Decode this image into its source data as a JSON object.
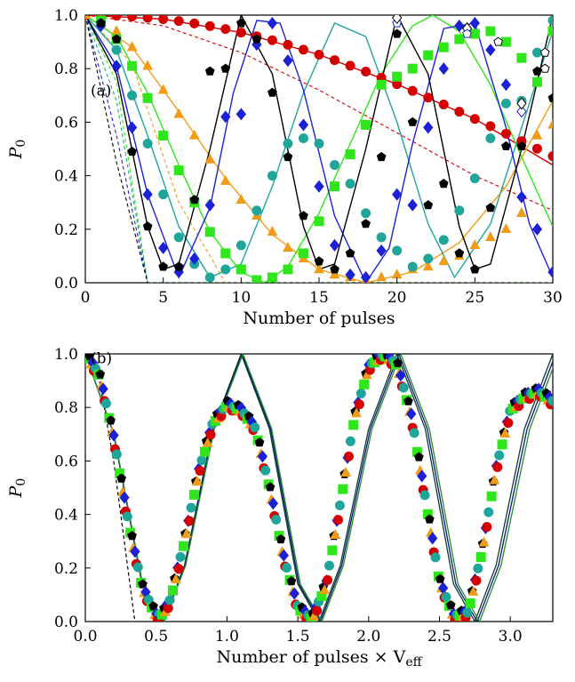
{
  "chart_data": [
    {
      "type": "scatter",
      "panel_label": "(a)",
      "xlabel": "Number of pulses",
      "ylabel": "P",
      "ylabel_sub": "0",
      "xlim": [
        0,
        30
      ],
      "ylim": [
        0,
        1
      ],
      "xticks": [
        0,
        5,
        10,
        15,
        20,
        25,
        30
      ],
      "yticks": [
        0.0,
        0.2,
        0.4,
        0.6,
        0.8,
        1.0
      ],
      "xtick_labels": [
        "0",
        "5",
        "10",
        "15",
        "20",
        "25",
        "30"
      ],
      "ytick_labels": [
        "0.0",
        "0.2",
        "0.4",
        "0.6",
        "0.8",
        "1.0"
      ],
      "grid": false,
      "series": [
        {
          "color": "#d40000",
          "marker": "circle",
          "filled": true,
          "x": [
            0,
            1,
            2,
            3,
            4,
            5,
            6,
            7,
            8,
            9,
            10,
            11,
            12,
            13,
            14,
            15,
            16,
            17,
            18,
            19,
            20,
            21,
            22,
            23,
            24,
            25,
            26,
            27,
            28,
            29,
            30
          ],
          "y": [
            1.0,
            1.0,
            0.998,
            0.995,
            0.99,
            0.985,
            0.978,
            0.969,
            0.959,
            0.948,
            0.935,
            0.921,
            0.906,
            0.889,
            0.871,
            0.852,
            0.832,
            0.811,
            0.789,
            0.766,
            0.742,
            0.717,
            0.692,
            0.666,
            0.639,
            0.612,
            0.585,
            0.557,
            0.529,
            0.501,
            0.473
          ],
          "model_x": [
            0,
            5,
            10,
            15,
            20,
            25,
            30
          ],
          "model_y": [
            1.0,
            0.985,
            0.935,
            0.852,
            0.742,
            0.612,
            0.44
          ],
          "short_time_y": [
            1.0,
            0.96,
            0.86,
            0.72,
            0.56,
            0.4,
            0.27
          ]
        },
        {
          "color": "#f29b17",
          "marker": "triangle",
          "filled": true,
          "x": [
            0,
            1,
            2,
            3,
            4,
            5,
            6,
            7,
            8,
            9,
            10,
            11,
            12,
            13,
            14,
            15,
            16,
            17,
            18,
            19,
            20,
            21,
            22,
            23,
            24,
            25,
            26,
            27,
            28,
            29,
            30
          ],
          "y": [
            1.0,
            0.98,
            0.94,
            0.88,
            0.81,
            0.72,
            0.63,
            0.55,
            0.46,
            0.38,
            0.31,
            0.25,
            0.19,
            0.13,
            0.09,
            0.05,
            0.03,
            0.02,
            0.01,
            0.02,
            0.03,
            0.05,
            0.06,
            0.08,
            0.1,
            0.14,
            0.17,
            0.2,
            0.26,
            0.55,
            0.59
          ],
          "model_x": [
            0,
            3,
            6,
            9,
            12,
            15,
            18,
            21,
            24,
            27,
            30
          ],
          "model_y": [
            1.0,
            0.88,
            0.64,
            0.39,
            0.18,
            0.05,
            0.0,
            0.04,
            0.15,
            0.36,
            0.68
          ],
          "short_time_y": [
            1.0,
            0.82,
            0.3,
            0.0,
            0.0,
            0.0,
            0.0,
            0.0,
            0.0,
            0.0,
            0.0
          ]
        },
        {
          "color": "#2ee61a",
          "marker": "square",
          "filled": true,
          "x": [
            1,
            2,
            3,
            4,
            5,
            6,
            7,
            8,
            9,
            10,
            11,
            12,
            13,
            14,
            15,
            16,
            17,
            18,
            19,
            20,
            21,
            22,
            23,
            24,
            25,
            26,
            27,
            28,
            29,
            30
          ],
          "y": [
            0.98,
            0.91,
            0.81,
            0.69,
            0.55,
            0.42,
            0.3,
            0.19,
            0.11,
            0.05,
            0.01,
            0.02,
            0.05,
            0.11,
            0.23,
            0.36,
            0.48,
            0.59,
            0.74,
            0.77,
            0.8,
            0.85,
            0.88,
            0.91,
            0.93,
            0.94,
            0.9,
            0.84,
            0.75,
            0.94
          ],
          "model_x": [
            0,
            2,
            4,
            6,
            8,
            10,
            11.5,
            13,
            15,
            17,
            19,
            21,
            22.3,
            24,
            26,
            28,
            30
          ],
          "model_y": [
            1.0,
            0.92,
            0.71,
            0.44,
            0.19,
            0.04,
            0.0,
            0.06,
            0.26,
            0.52,
            0.78,
            0.96,
            1.0,
            0.94,
            0.74,
            0.47,
            0.21
          ],
          "short_time_y": [
            1.0,
            0.75,
            0.0,
            0.0,
            0.0,
            0.0,
            0.0,
            0.0,
            0.0,
            0.0,
            0.0,
            0.0,
            0.0,
            0.0,
            0.0,
            0.0,
            0.0
          ]
        },
        {
          "color": "#20a59a",
          "marker": "circle",
          "filled": true,
          "x": [
            1,
            2,
            3,
            4,
            5,
            6,
            7,
            8,
            9,
            10,
            11,
            12,
            13,
            14,
            15,
            16,
            17,
            18,
            19,
            20,
            21,
            22,
            23,
            24,
            25,
            26,
            27,
            28,
            29,
            30
          ],
          "y": [
            0.97,
            0.87,
            0.7,
            0.52,
            0.33,
            0.17,
            0.07,
            0.02,
            0.05,
            0.14,
            0.27,
            0.4,
            0.52,
            0.54,
            0.52,
            0.44,
            0.37,
            0.26,
            0.17,
            0.12,
            0.06,
            0.09,
            0.16,
            0.27,
            0.39,
            0.54,
            0.67,
            0.68,
            0.86,
            0.98
          ],
          "model_x": [
            0,
            2,
            4,
            6,
            8,
            10,
            12,
            14,
            16,
            18,
            20,
            22,
            23.7,
            26,
            28,
            30
          ],
          "model_y": [
            1.0,
            0.87,
            0.55,
            0.21,
            0.02,
            0.07,
            0.36,
            0.71,
            0.97,
            0.92,
            0.6,
            0.22,
            0.02,
            0.22,
            0.58,
            0.94
          ],
          "short_time_y": [
            1.0,
            0.68,
            0.0,
            0.0,
            0.0,
            0.0,
            0.0,
            0.0,
            0.0,
            0.0,
            0.0,
            0.0,
            0.0,
            0.0,
            0.0,
            0.0
          ]
        },
        {
          "color": "#1c21d4",
          "marker": "diamond",
          "filled": true,
          "x": [
            1,
            2,
            3,
            4,
            5,
            6,
            7,
            8,
            9,
            10,
            11,
            12,
            13,
            14,
            15,
            16,
            17,
            18,
            19,
            20,
            21,
            22,
            23,
            24,
            25,
            26,
            27,
            28,
            29,
            30
          ],
          "y": [
            0.96,
            0.81,
            0.58,
            0.33,
            0.13,
            0.04,
            0.09,
            0.29,
            0.62,
            0.63,
            0.89,
            0.97,
            0.83,
            0.59,
            0.36,
            0.14,
            0.03,
            0.02,
            0.12,
            0.33,
            0.29,
            0.58,
            0.8,
            0.96,
            0.97,
            0.87,
            0.74,
            0.32,
            0.2,
            0.04
          ],
          "model_x": [
            0,
            2,
            4,
            6,
            8,
            9.5,
            11,
            12.5,
            14,
            16,
            18,
            19.5,
            21,
            23,
            25,
            27,
            28.5,
            30
          ],
          "model_y": [
            1.0,
            0.81,
            0.33,
            0.02,
            0.28,
            0.71,
            0.98,
            0.97,
            0.72,
            0.25,
            0.0,
            0.13,
            0.52,
            0.95,
            0.97,
            0.58,
            0.22,
            0.02
          ],
          "short_time_y": [
            1.0,
            0.55,
            0.0,
            0.0,
            0.0,
            0.0,
            0.0,
            0.0,
            0.0,
            0.0,
            0.0,
            0.0,
            0.0,
            0.0,
            0.0,
            0.0,
            0.0,
            0.0
          ]
        },
        {
          "color": "#000000",
          "marker": "pentagon",
          "filled": true,
          "x": [
            1,
            2,
            3,
            4,
            5,
            6,
            7,
            8,
            9,
            10,
            11,
            12,
            13,
            14,
            15,
            16,
            17,
            18,
            19,
            20,
            21,
            22,
            23,
            24,
            25,
            26,
            27,
            28,
            29,
            30
          ],
          "y": [
            0.97,
            0.91,
            0.49,
            0.21,
            0.06,
            0.06,
            0.31,
            0.79,
            0.8,
            0.97,
            0.91,
            0.71,
            0.47,
            0.25,
            0.08,
            0.05,
            0.11,
            0.22,
            0.47,
            0.93,
            0.6,
            0.29,
            0.37,
            0.11,
            0.05,
            0.28,
            0.51,
            0.51,
            0.79,
            0.69
          ],
          "model_x": [
            0,
            2,
            4,
            5,
            6,
            8,
            10,
            12,
            14,
            15,
            16,
            18,
            20,
            22,
            24,
            25,
            26,
            28,
            30
          ],
          "model_y": [
            1.0,
            0.78,
            0.21,
            0.05,
            0.07,
            0.5,
            1.0,
            0.78,
            0.21,
            0.05,
            0.07,
            0.5,
            1.0,
            0.78,
            0.21,
            0.05,
            0.07,
            0.5,
            1.0
          ],
          "short_time_y": [
            1.0,
            0.45,
            0.0,
            0.0,
            0.0,
            0.0,
            0.0,
            0.0,
            0.0,
            0.0,
            0.0,
            0.0,
            0.0,
            0.0,
            0.0,
            0.0,
            0.0,
            0.0,
            0.0
          ]
        }
      ],
      "open_markers": {
        "x": [
          20,
          24.5,
          26.5,
          28,
          29.5,
          20,
          24.5,
          28,
          29.5
        ],
        "y": [
          0.97,
          0.95,
          0.9,
          0.64,
          0.86,
          0.99,
          0.93,
          0.67,
          0.8
        ]
      }
    },
    {
      "type": "scatter",
      "panel_label": "(b)",
      "xlabel": "Number of pulses × V",
      "xlabel_sub": "eff",
      "ylabel": "P",
      "ylabel_sub": "0",
      "xlim": [
        0,
        3.3
      ],
      "ylim": [
        0,
        1
      ],
      "xticks": [
        0.0,
        0.5,
        1.0,
        1.5,
        2.0,
        2.5,
        3.0
      ],
      "yticks": [
        0.0,
        0.2,
        0.4,
        0.6,
        0.8,
        1.0
      ],
      "xtick_labels": [
        "0.0",
        "0.5",
        "1.0",
        "1.5",
        "2.0",
        "2.5",
        "3.0"
      ],
      "ytick_labels": [
        "0.0",
        "0.2",
        "0.4",
        "0.6",
        "0.8",
        "1.0"
      ],
      "grid": false,
      "collapsed_curve": {
        "x": [
          0.0,
          0.1,
          0.2,
          0.3,
          0.4,
          0.5,
          0.55,
          0.6,
          0.7,
          0.8,
          0.9,
          1.0,
          1.1,
          1.2,
          1.3,
          1.4,
          1.5,
          1.6,
          1.7,
          1.8,
          1.9,
          2.0,
          2.1,
          2.2,
          2.3,
          2.4,
          2.5,
          2.6,
          2.7,
          2.8,
          2.9,
          3.0,
          3.1,
          3.2,
          3.3
        ],
        "y": [
          1.0,
          0.92,
          0.69,
          0.38,
          0.13,
          0.02,
          0.03,
          0.08,
          0.3,
          0.56,
          0.74,
          0.81,
          0.79,
          0.72,
          0.5,
          0.24,
          0.05,
          0.01,
          0.14,
          0.44,
          0.76,
          0.95,
          1.0,
          0.96,
          0.77,
          0.46,
          0.15,
          0.02,
          0.03,
          0.26,
          0.57,
          0.79,
          0.84,
          0.86,
          0.82
        ]
      },
      "envelope_curve": {
        "x": [
          0.0,
          0.2,
          0.4,
          0.55,
          0.7,
          0.9,
          1.1,
          1.3,
          1.5,
          1.65,
          1.8,
          2.0,
          2.2,
          2.4,
          2.6,
          2.75,
          2.9,
          3.1,
          3.3
        ],
        "y": [
          1.0,
          0.7,
          0.14,
          0.0,
          0.21,
          0.72,
          1.0,
          0.72,
          0.14,
          0.0,
          0.21,
          0.72,
          1.0,
          0.72,
          0.14,
          0.0,
          0.21,
          0.72,
          1.0
        ]
      },
      "short_time": {
        "x": [
          0.0,
          0.1,
          0.2,
          0.3,
          0.35
        ],
        "y": [
          1.0,
          0.9,
          0.6,
          0.2,
          0.0
        ]
      },
      "marker_colors": [
        "#d40000",
        "#f29b17",
        "#2ee61a",
        "#20a59a",
        "#1c21d4",
        "#000000"
      ]
    }
  ]
}
